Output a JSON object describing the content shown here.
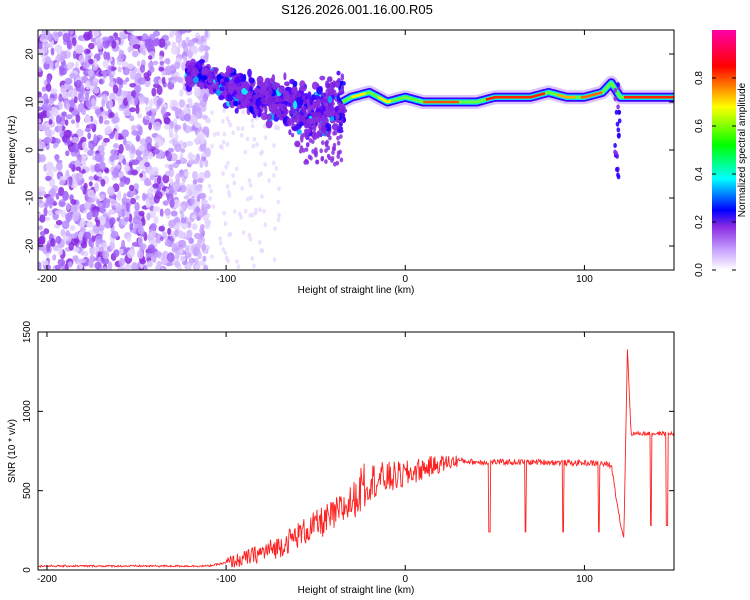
{
  "title": "S126.2026.001.16.00.R05",
  "chart_data": [
    {
      "type": "heatmap",
      "xlabel": "Height of straight line (km)",
      "ylabel": "Frequency (Hz)",
      "xlim": [
        -205,
        150
      ],
      "ylim": [
        -25,
        25
      ],
      "xticks": [
        -200,
        -100,
        0,
        100
      ],
      "yticks": [
        -20,
        -10,
        0,
        10,
        20
      ],
      "colorbar": {
        "label": "Normalized spectral amplitude",
        "range": [
          0,
          1
        ],
        "ticks": [
          0.0,
          0.2,
          0.4,
          0.6,
          0.8
        ],
        "colors": [
          "#ffffff",
          "#8a2be2",
          "#0000ff",
          "#00ffff",
          "#00ff00",
          "#ffff00",
          "#ff0000",
          "#ff00ff"
        ]
      },
      "ridge": {
        "x": [
          -120,
          -110,
          -100,
          -90,
          -80,
          -70,
          -60,
          -50,
          -40,
          -30,
          -20,
          -10,
          0,
          10,
          20,
          30,
          40,
          50,
          60,
          70,
          80,
          90,
          100,
          110,
          115,
          120,
          150
        ],
        "frequency": [
          16,
          15,
          13,
          12,
          11,
          10,
          9,
          8,
          9,
          11,
          12,
          10,
          11,
          10,
          10,
          10,
          10,
          11,
          11,
          11,
          12,
          11,
          11,
          12,
          14,
          11,
          11
        ]
      }
    },
    {
      "type": "line",
      "xlabel": "Height of straight line (km)",
      "ylabel": "SNR (10 * v/v)",
      "xlim": [
        -205,
        150
      ],
      "ylim": [
        0,
        1500
      ],
      "xticks": [
        -200,
        -100,
        0,
        100
      ],
      "yticks": [
        0,
        500,
        1000,
        1500
      ],
      "color": "#ff2020",
      "x": [
        -205,
        -150,
        -110,
        -100,
        -90,
        -80,
        -70,
        -60,
        -50,
        -40,
        -30,
        -25,
        -20,
        -10,
        0,
        10,
        20,
        30,
        40,
        50,
        60,
        70,
        80,
        90,
        100,
        110,
        115,
        120,
        122,
        124,
        126,
        130,
        140,
        150
      ],
      "y": [
        25,
        25,
        25,
        45,
        70,
        110,
        150,
        220,
        280,
        340,
        430,
        480,
        560,
        580,
        600,
        640,
        670,
        690,
        680,
        680,
        680,
        680,
        680,
        675,
        675,
        670,
        660,
        300,
        200,
        1400,
        860,
        860,
        860,
        860
      ],
      "dips": [
        {
          "x": 47,
          "y": 240
        },
        {
          "x": 67,
          "y": 240
        },
        {
          "x": 88,
          "y": 240
        },
        {
          "x": 108,
          "y": 240
        },
        {
          "x": 137,
          "y": 280
        },
        {
          "x": 146,
          "y": 280
        }
      ]
    }
  ]
}
